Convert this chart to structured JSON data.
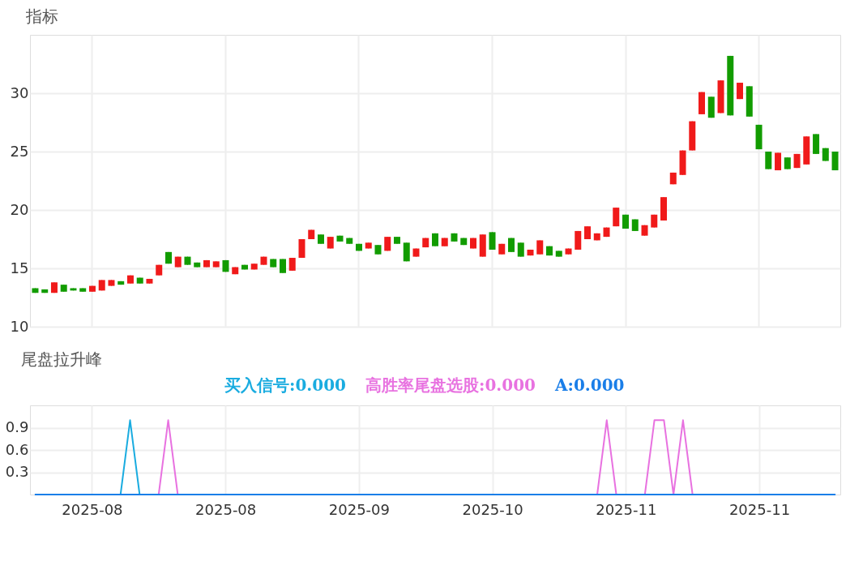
{
  "chart_data": [
    {
      "type": "candlestick",
      "title": "指标",
      "categories": [
        null,
        null,
        null,
        null,
        null,
        null,
        "2025-08",
        null,
        null,
        null,
        null,
        null,
        null,
        null,
        null,
        null,
        null,
        null,
        null,
        null,
        "2025-08",
        null,
        null,
        null,
        null,
        null,
        null,
        null,
        null,
        null,
        null,
        null,
        null,
        null,
        "2025-09",
        null,
        null,
        null,
        null,
        null,
        null,
        null,
        null,
        null,
        null,
        null,
        null,
        null,
        "2025-10",
        null,
        null,
        null,
        null,
        null,
        null,
        null,
        null,
        null,
        null,
        null,
        null,
        null,
        "2025-11",
        null,
        null,
        null,
        null,
        null,
        null,
        null,
        null,
        null,
        null,
        null,
        null,
        null,
        "2025-11",
        null,
        null,
        null,
        null,
        null,
        null,
        null,
        null
      ],
      "ohlc": [
        [
          13.3,
          13.3,
          12.9,
          12.9
        ],
        [
          13.2,
          13.2,
          12.9,
          12.9
        ],
        [
          12.9,
          13.8,
          12.9,
          13.8
        ],
        [
          13.6,
          13.6,
          13.0,
          13.0
        ],
        [
          13.3,
          13.3,
          13.1,
          13.1
        ],
        [
          13.3,
          13.3,
          13.0,
          13.0
        ],
        [
          13.0,
          13.5,
          13.0,
          13.5
        ],
        [
          13.1,
          14.0,
          13.1,
          14.0
        ],
        [
          13.5,
          14.0,
          13.5,
          14.0
        ],
        [
          13.9,
          13.9,
          13.6,
          13.6
        ],
        [
          13.7,
          14.4,
          13.7,
          14.4
        ],
        [
          14.2,
          14.2,
          13.7,
          13.7
        ],
        [
          13.7,
          14.1,
          13.7,
          14.1
        ],
        [
          14.4,
          15.3,
          14.4,
          15.3
        ],
        [
          16.4,
          16.4,
          15.4,
          15.4
        ],
        [
          15.1,
          16.0,
          15.1,
          16.0
        ],
        [
          16.0,
          16.0,
          15.3,
          15.3
        ],
        [
          15.5,
          15.5,
          15.1,
          15.1
        ],
        [
          15.1,
          15.7,
          15.1,
          15.7
        ],
        [
          15.1,
          15.6,
          15.1,
          15.6
        ],
        [
          15.7,
          15.7,
          14.7,
          14.7
        ],
        [
          14.5,
          15.1,
          14.5,
          15.1
        ],
        [
          15.3,
          15.3,
          14.9,
          14.9
        ],
        [
          14.9,
          15.4,
          14.9,
          15.4
        ],
        [
          15.3,
          16.0,
          15.3,
          16.0
        ],
        [
          15.8,
          15.8,
          15.1,
          15.1
        ],
        [
          15.8,
          15.8,
          14.6,
          14.6
        ],
        [
          14.8,
          15.9,
          14.8,
          15.9
        ],
        [
          15.9,
          17.5,
          15.9,
          17.5
        ],
        [
          17.5,
          18.3,
          17.5,
          18.3
        ],
        [
          17.9,
          17.9,
          17.1,
          17.1
        ],
        [
          16.7,
          17.7,
          16.7,
          17.7
        ],
        [
          17.8,
          17.8,
          17.3,
          17.3
        ],
        [
          17.6,
          17.6,
          17.1,
          17.1
        ],
        [
          17.1,
          17.1,
          16.5,
          16.5
        ],
        [
          16.7,
          17.2,
          16.7,
          17.2
        ],
        [
          17.0,
          17.0,
          16.2,
          16.2
        ],
        [
          16.5,
          17.7,
          16.5,
          17.7
        ],
        [
          17.7,
          17.7,
          17.1,
          17.1
        ],
        [
          17.2,
          17.2,
          15.6,
          15.6
        ],
        [
          16.0,
          16.7,
          16.0,
          16.7
        ],
        [
          16.8,
          17.6,
          16.8,
          17.6
        ],
        [
          18.0,
          18.0,
          16.9,
          16.9
        ],
        [
          16.9,
          17.6,
          16.9,
          17.6
        ],
        [
          18.0,
          18.0,
          17.3,
          17.3
        ],
        [
          17.6,
          17.6,
          17.0,
          17.0
        ],
        [
          16.7,
          17.6,
          16.7,
          17.6
        ],
        [
          16.0,
          17.9,
          16.0,
          17.9
        ],
        [
          18.1,
          18.1,
          16.6,
          16.6
        ],
        [
          16.2,
          17.1,
          16.2,
          17.1
        ],
        [
          17.6,
          17.6,
          16.4,
          16.4
        ],
        [
          17.2,
          17.2,
          16.0,
          16.0
        ],
        [
          16.1,
          16.6,
          16.1,
          16.6
        ],
        [
          16.2,
          17.4,
          16.2,
          17.4
        ],
        [
          16.9,
          16.9,
          16.1,
          16.1
        ],
        [
          16.5,
          16.5,
          16.0,
          16.0
        ],
        [
          16.2,
          16.7,
          16.2,
          16.7
        ],
        [
          16.6,
          18.2,
          16.6,
          18.2
        ],
        [
          17.5,
          18.6,
          17.5,
          18.6
        ],
        [
          17.4,
          18.0,
          17.4,
          18.0
        ],
        [
          17.7,
          18.5,
          17.7,
          18.5
        ],
        [
          18.6,
          20.2,
          18.6,
          20.2
        ],
        [
          19.6,
          19.6,
          18.4,
          18.4
        ],
        [
          19.2,
          19.2,
          18.2,
          18.2
        ],
        [
          17.8,
          18.7,
          17.8,
          18.7
        ],
        [
          18.5,
          19.6,
          18.5,
          19.6
        ],
        [
          19.1,
          21.1,
          19.1,
          21.1
        ],
        [
          22.2,
          23.2,
          22.2,
          23.2
        ],
        [
          23.0,
          25.1,
          23.0,
          25.1
        ],
        [
          25.1,
          27.6,
          25.1,
          27.6
        ],
        [
          28.2,
          30.1,
          28.2,
          30.1
        ],
        [
          29.7,
          29.7,
          27.9,
          27.9
        ],
        [
          28.3,
          31.1,
          28.3,
          31.1
        ],
        [
          33.2,
          33.2,
          28.1,
          28.1
        ],
        [
          29.5,
          30.9,
          29.5,
          30.9
        ],
        [
          30.6,
          30.6,
          28.0,
          28.0
        ],
        [
          27.3,
          27.3,
          25.2,
          25.2
        ],
        [
          25.0,
          25.0,
          23.5,
          23.5
        ],
        [
          23.4,
          24.9,
          23.4,
          24.9
        ],
        [
          24.5,
          24.5,
          23.5,
          23.5
        ],
        [
          23.6,
          24.8,
          23.6,
          24.8
        ],
        [
          23.9,
          26.3,
          23.9,
          26.3
        ],
        [
          26.5,
          26.5,
          24.8,
          24.8
        ],
        [
          25.3,
          25.3,
          24.2,
          24.2
        ],
        [
          25.0,
          25.0,
          23.4,
          23.4
        ]
      ],
      "colors": [
        "#129c00",
        "#129c00",
        "#f01a1a",
        "#129c00",
        "#129c00",
        "#129c00",
        "#f01a1a",
        "#f01a1a",
        "#f01a1a",
        "#129c00",
        "#f01a1a",
        "#129c00",
        "#f01a1a",
        "#f01a1a",
        "#129c00",
        "#f01a1a",
        "#129c00",
        "#129c00",
        "#f01a1a",
        "#f01a1a",
        "#129c00",
        "#f01a1a",
        "#129c00",
        "#f01a1a",
        "#f01a1a",
        "#129c00",
        "#129c00",
        "#f01a1a",
        "#f01a1a",
        "#f01a1a",
        "#129c00",
        "#f01a1a",
        "#129c00",
        "#129c00",
        "#129c00",
        "#f01a1a",
        "#129c00",
        "#f01a1a",
        "#129c00",
        "#129c00",
        "#f01a1a",
        "#f01a1a",
        "#129c00",
        "#f01a1a",
        "#129c00",
        "#129c00",
        "#f01a1a",
        "#f01a1a",
        "#129c00",
        "#f01a1a",
        "#129c00",
        "#129c00",
        "#f01a1a",
        "#f01a1a",
        "#129c00",
        "#129c00",
        "#f01a1a",
        "#f01a1a",
        "#f01a1a",
        "#f01a1a",
        "#f01a1a",
        "#f01a1a",
        "#129c00",
        "#129c00",
        "#f01a1a",
        "#f01a1a",
        "#f01a1a",
        "#f01a1a",
        "#f01a1a",
        "#f01a1a",
        "#f01a1a",
        "#129c00",
        "#f01a1a",
        "#129c00",
        "#f01a1a",
        "#129c00",
        "#129c00",
        "#129c00",
        "#f01a1a",
        "#129c00",
        "#f01a1a",
        "#f01a1a",
        "#129c00",
        "#129c00",
        "#129c00"
      ],
      "ylim": [
        10,
        35
      ],
      "yticks": [
        10,
        15,
        20,
        25,
        30
      ],
      "grid": true,
      "tick_labels": "y"
    },
    {
      "type": "line",
      "title": "尾盘拉升峰",
      "categories": [
        null,
        null,
        null,
        null,
        null,
        null,
        "2025-08",
        null,
        null,
        null,
        null,
        null,
        null,
        null,
        null,
        null,
        null,
        null,
        null,
        null,
        "2025-08",
        null,
        null,
        null,
        null,
        null,
        null,
        null,
        null,
        null,
        null,
        null,
        null,
        null,
        "2025-09",
        null,
        null,
        null,
        null,
        null,
        null,
        null,
        null,
        null,
        null,
        null,
        null,
        null,
        "2025-10",
        null,
        null,
        null,
        null,
        null,
        null,
        null,
        null,
        null,
        null,
        null,
        null,
        null,
        "2025-11",
        null,
        null,
        null,
        null,
        null,
        null,
        null,
        null,
        null,
        null,
        null,
        null,
        null,
        "2025-11",
        null,
        null,
        null,
        null,
        null,
        null,
        null,
        null
      ],
      "series": [
        {
          "name": "买入信号:0.000",
          "color": "#1aace0",
          "values": [
            null,
            null,
            null,
            null,
            null,
            null,
            null,
            null,
            null,
            0,
            1,
            0,
            null,
            null,
            null,
            null,
            null,
            null,
            null,
            null,
            null,
            null,
            null,
            null,
            null,
            null,
            null,
            null,
            null,
            null,
            null,
            null,
            null,
            null,
            null,
            null,
            null,
            null,
            null,
            null,
            null,
            null,
            null,
            null,
            null,
            null,
            null,
            null,
            null,
            null,
            null,
            null,
            null,
            null,
            null,
            null,
            null,
            null,
            null,
            null,
            null,
            null,
            null,
            null,
            null,
            null,
            null,
            null,
            null,
            null,
            null,
            null,
            null,
            null,
            null,
            null,
            null,
            null,
            null,
            null,
            null,
            null,
            null,
            null,
            null
          ]
        },
        {
          "name": "高胜率尾盘选股:0.000",
          "color": "#e872e0",
          "values": [
            null,
            null,
            null,
            null,
            null,
            null,
            null,
            null,
            null,
            null,
            null,
            null,
            null,
            0,
            1,
            0,
            null,
            null,
            null,
            null,
            null,
            null,
            null,
            null,
            null,
            null,
            null,
            null,
            null,
            null,
            null,
            null,
            null,
            null,
            null,
            null,
            null,
            null,
            null,
            null,
            null,
            null,
            null,
            null,
            null,
            null,
            null,
            null,
            null,
            null,
            null,
            null,
            null,
            null,
            null,
            null,
            null,
            null,
            null,
            0,
            1,
            0,
            null,
            null,
            0,
            1,
            1,
            0,
            1,
            0,
            null,
            null,
            null,
            null,
            null,
            null,
            null,
            null,
            null,
            null,
            null,
            null,
            null,
            null,
            null
          ]
        },
        {
          "name": "A:0.000",
          "color": "#1a7ee8",
          "values": [
            0,
            0,
            0,
            0,
            0,
            0,
            0,
            0,
            0,
            0,
            0,
            0,
            0,
            0,
            0,
            0,
            0,
            0,
            0,
            0,
            0,
            0,
            0,
            0,
            0,
            0,
            0,
            0,
            0,
            0,
            0,
            0,
            0,
            0,
            0,
            0,
            0,
            0,
            0,
            0,
            0,
            0,
            0,
            0,
            0,
            0,
            0,
            0,
            0,
            0,
            0,
            0,
            0,
            0,
            0,
            0,
            0,
            0,
            0,
            0,
            0,
            0,
            0,
            0,
            0,
            0,
            0,
            0,
            0,
            0,
            0,
            0,
            0,
            0,
            0,
            0,
            0,
            0,
            0,
            0,
            0,
            0,
            0,
            0,
            0
          ]
        }
      ],
      "ylim": [
        0,
        1.2
      ],
      "yticks": [
        0.3,
        0.6,
        0.9
      ],
      "grid": true,
      "legend": "top left"
    }
  ]
}
